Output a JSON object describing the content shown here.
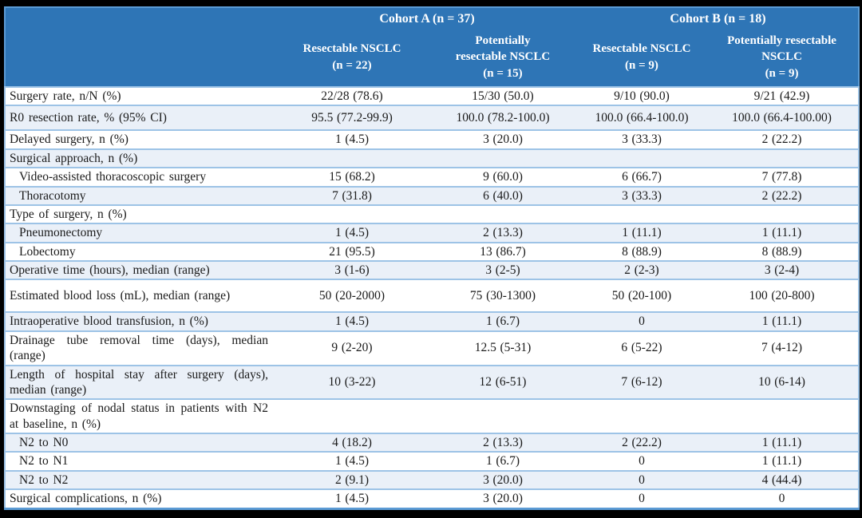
{
  "colors": {
    "header_blue": "#2E75B6",
    "row_alt_blue": "#EAF0F8",
    "row_border_blue": "#9DC3E6",
    "header_border_blue": "#5B9BD5",
    "frame_black": "#000000"
  },
  "header": {
    "cohort_a": "Cohort A (n = 37)",
    "cohort_b": "Cohort B (n = 18)",
    "subheaders": [
      "Resectable NSCLC\n(n = 22)",
      "Potentially\nresectable NSCLC\n(n = 15)",
      "Resectable NSCLC\n(n = 9)",
      "Potentially resectable\nNSCLC\n(n = 9)"
    ]
  },
  "rows": [
    {
      "label": "Surgery rate, n/N (%)",
      "indent": false,
      "values": [
        "22/28 (78.6)",
        "15/30 (50.0)",
        "9/10 (90.0)",
        "9/21 (42.9)"
      ]
    },
    {
      "label": "R0 resection rate, % (95% CI)",
      "indent": false,
      "values": [
        "95.5 (77.2-99.9)",
        "100.0 (78.2-100.0)",
        "100.0 (66.4-100.0)",
        "100.0 (66.4-100.00)"
      ]
    },
    {
      "label": "Delayed surgery, n (%)",
      "indent": false,
      "values": [
        "1 (4.5)",
        "3 (20.0)",
        "3 (33.3)",
        "2 (22.2)"
      ]
    },
    {
      "label": "Surgical approach, n (%)",
      "indent": false,
      "values": [
        "",
        "",
        "",
        ""
      ]
    },
    {
      "label": "Video-assisted thoracoscopic surgery",
      "indent": true,
      "values": [
        "15 (68.2)",
        "9 (60.0)",
        "6 (66.7)",
        "7 (77.8)"
      ]
    },
    {
      "label": "Thoracotomy",
      "indent": true,
      "values": [
        "7 (31.8)",
        "6 (40.0)",
        "3 (33.3)",
        "2 (22.2)"
      ]
    },
    {
      "label": "Type of surgery, n (%)",
      "indent": false,
      "values": [
        "",
        "",
        "",
        ""
      ]
    },
    {
      "label": "Pneumonectomy",
      "indent": true,
      "values": [
        "1 (4.5)",
        "2 (13.3)",
        "1 (11.1)",
        "1 (11.1)"
      ]
    },
    {
      "label": "Lobectomy",
      "indent": true,
      "values": [
        "21 (95.5)",
        "13 (86.7)",
        "8 (88.9)",
        "8 (88.9)"
      ]
    },
    {
      "label": "Operative time (hours), median (range)",
      "indent": false,
      "values": [
        "3 (1-6)",
        "3 (2-5)",
        "2 (2-3)",
        "3 (2-4)"
      ]
    },
    {
      "label": "Estimated blood loss (mL), median (range)",
      "indent": false,
      "values": [
        "50 (20-2000)",
        "75 (30-1300)",
        "50 (20-100)",
        "100 (20-800)"
      ]
    },
    {
      "label": "Intraoperative blood transfusion, n (%)",
      "indent": false,
      "values": [
        "1 (4.5)",
        "1 (6.7)",
        "0",
        "1 (11.1)"
      ]
    },
    {
      "label": "Drainage tube removal time (days), median (range)",
      "indent": false,
      "values": [
        "9 (2-20)",
        "12.5 (5-31)",
        "6 (5-22)",
        "7 (4-12)"
      ]
    },
    {
      "label": "Length of hospital stay after surgery (days), median (range)",
      "indent": false,
      "values": [
        "10 (3-22)",
        "12 (6-51)",
        "7 (6-12)",
        "10 (6-14)"
      ]
    },
    {
      "label": "Downstaging of nodal status in patients with N2 at baseline, n (%)",
      "indent": false,
      "values": [
        "",
        "",
        "",
        ""
      ]
    },
    {
      "label": "N2 to N0",
      "indent": true,
      "values": [
        "4 (18.2)",
        "2 (13.3)",
        "2 (22.2)",
        "1 (11.1)"
      ]
    },
    {
      "label": "N2 to N1",
      "indent": true,
      "values": [
        "1 (4.5)",
        "1 (6.7)",
        "0",
        "1 (11.1)"
      ]
    },
    {
      "label": "N2 to N2",
      "indent": true,
      "values": [
        "2 (9.1)",
        "3 (20.0)",
        "0",
        "4 (44.4)"
      ]
    },
    {
      "label": "Surgical complications, n (%)",
      "indent": false,
      "values": [
        "1 (4.5)",
        "3 (20.0)",
        "0",
        "0"
      ]
    }
  ]
}
